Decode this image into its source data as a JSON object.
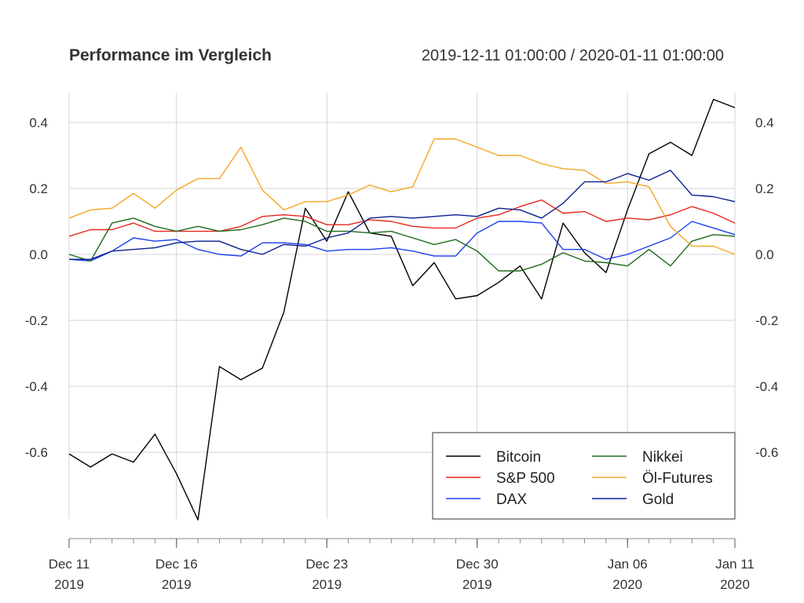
{
  "chart_data": {
    "type": "line",
    "title": "Performance im Vergleich",
    "subtitle": "2019-12-11 01:00:00 / 2020-01-11 01:00:00",
    "x": [
      "2019-12-11",
      "2019-12-12",
      "2019-12-13",
      "2019-12-14",
      "2019-12-15",
      "2019-12-16",
      "2019-12-17",
      "2019-12-18",
      "2019-12-19",
      "2019-12-20",
      "2019-12-21",
      "2019-12-22",
      "2019-12-23",
      "2019-12-24",
      "2019-12-25",
      "2019-12-26",
      "2019-12-27",
      "2019-12-28",
      "2019-12-29",
      "2019-12-30",
      "2019-12-31",
      "2020-01-01",
      "2020-01-02",
      "2020-01-03",
      "2020-01-04",
      "2020-01-05",
      "2020-01-06",
      "2020-01-07",
      "2020-01-08",
      "2020-01-09",
      "2020-01-10",
      "2020-01-11"
    ],
    "x_tick_labels": [
      {
        "date": "2019-12-11",
        "line1": "Dec 11",
        "line2": "2019"
      },
      {
        "date": "2019-12-16",
        "line1": "Dec 16",
        "line2": "2019"
      },
      {
        "date": "2019-12-23",
        "line1": "Dec 23",
        "line2": "2019"
      },
      {
        "date": "2019-12-30",
        "line1": "Dec 30",
        "line2": "2019"
      },
      {
        "date": "2020-01-06",
        "line1": "Jan 06",
        "line2": "2020"
      },
      {
        "date": "2020-01-11",
        "line1": "Jan 11",
        "line2": "2020"
      }
    ],
    "y_ticks": [
      0.4,
      0.2,
      0.0,
      -0.2,
      -0.4,
      -0.6
    ],
    "y_tick_labels": [
      "0.4",
      "0.2",
      "0.0",
      "-0.2",
      "-0.4",
      "-0.6"
    ],
    "ylim": [
      -0.8,
      0.5
    ],
    "grid": true,
    "legend_position": "bottom-right",
    "series": [
      {
        "name": "Bitcoin",
        "color": "#000000",
        "values": [
          -0.605,
          -0.645,
          -0.605,
          -0.63,
          -0.545,
          -0.665,
          -0.805,
          -0.34,
          -0.38,
          -0.345,
          -0.175,
          0.14,
          0.04,
          0.19,
          0.065,
          0.055,
          -0.095,
          -0.025,
          -0.135,
          -0.125,
          -0.085,
          -0.035,
          -0.135,
          0.095,
          0.005,
          -0.055,
          0.135,
          0.305,
          0.34,
          0.3,
          0.47,
          0.445
        ]
      },
      {
        "name": "S&P 500",
        "color": "#e8261d",
        "values": [
          0.055,
          0.075,
          0.075,
          0.095,
          0.07,
          0.07,
          0.07,
          0.07,
          0.085,
          0.115,
          0.12,
          0.115,
          0.09,
          0.09,
          0.105,
          0.1,
          0.085,
          0.08,
          0.08,
          0.11,
          0.12,
          0.145,
          0.165,
          0.125,
          0.13,
          0.1,
          0.11,
          0.105,
          0.12,
          0.145,
          0.125,
          0.095
        ]
      },
      {
        "name": "DAX",
        "color": "#1a3ff0",
        "values": [
          -0.015,
          -0.02,
          0.01,
          0.05,
          0.04,
          0.045,
          0.015,
          0.0,
          -0.005,
          0.035,
          0.035,
          0.03,
          0.01,
          0.015,
          0.015,
          0.02,
          0.01,
          -0.005,
          -0.005,
          0.065,
          0.1,
          0.1,
          0.095,
          0.015,
          0.015,
          -0.015,
          0.0,
          0.025,
          0.05,
          0.1,
          0.08,
          0.06
        ]
      },
      {
        "name": "Nikkei",
        "color": "#1d6b1d",
        "values": [
          0.0,
          -0.02,
          0.095,
          0.11,
          0.085,
          0.07,
          0.085,
          0.07,
          0.075,
          0.09,
          0.11,
          0.1,
          0.07,
          0.07,
          0.065,
          0.07,
          0.05,
          0.03,
          0.045,
          0.01,
          -0.05,
          -0.05,
          -0.03,
          0.005,
          -0.02,
          -0.025,
          -0.035,
          0.015,
          -0.035,
          0.04,
          0.06,
          0.055
        ]
      },
      {
        "name": "Öl-Futures",
        "color": "#f5a623",
        "values": [
          0.11,
          0.135,
          0.14,
          0.185,
          0.14,
          0.195,
          0.23,
          0.23,
          0.325,
          0.195,
          0.135,
          0.16,
          0.16,
          0.18,
          0.21,
          0.19,
          0.205,
          0.35,
          0.35,
          0.325,
          0.3,
          0.3,
          0.275,
          0.26,
          0.255,
          0.215,
          0.22,
          0.205,
          0.085,
          0.025,
          0.025,
          0.0
        ]
      },
      {
        "name": "Gold",
        "color": "#0a1f8f",
        "values": [
          -0.015,
          -0.015,
          0.01,
          0.015,
          0.02,
          0.035,
          0.04,
          0.04,
          0.015,
          0.0,
          0.03,
          0.025,
          0.05,
          0.065,
          0.11,
          0.115,
          0.11,
          0.115,
          0.12,
          0.115,
          0.14,
          0.135,
          0.11,
          0.155,
          0.22,
          0.22,
          0.245,
          0.225,
          0.255,
          0.18,
          0.175,
          0.16
        ]
      }
    ]
  }
}
